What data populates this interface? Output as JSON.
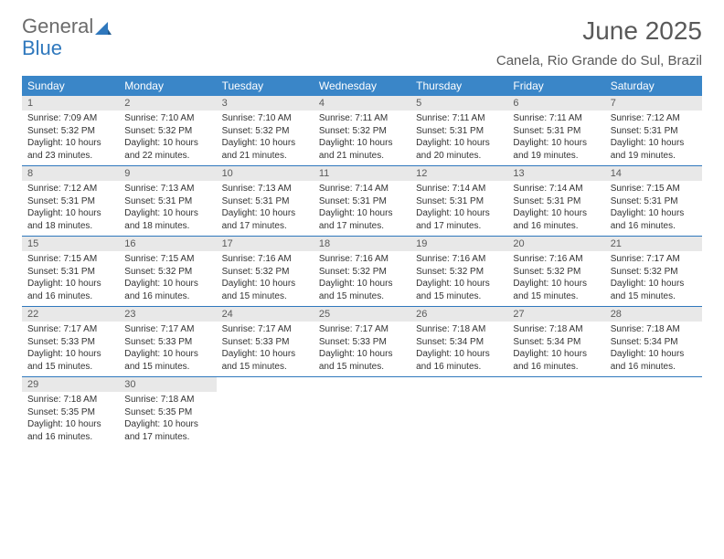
{
  "logo": {
    "text1": "General",
    "text2": "Blue"
  },
  "title": "June 2025",
  "location": "Canela, Rio Grande do Sul, Brazil",
  "colors": {
    "header_bg": "#3a86c8",
    "header_fg": "#ffffff",
    "daynum_bg": "#e8e8e8",
    "row_border": "#2f78bd",
    "title_color": "#595959",
    "text_color": "#333333",
    "logo_gray": "#6b6b6b",
    "logo_blue": "#2f78bd"
  },
  "typography": {
    "title_fontsize": 28,
    "location_fontsize": 15,
    "weekday_fontsize": 12,
    "daynum_fontsize": 11,
    "body_fontsize": 10
  },
  "weekdays": [
    "Sunday",
    "Monday",
    "Tuesday",
    "Wednesday",
    "Thursday",
    "Friday",
    "Saturday"
  ],
  "weeks": [
    [
      {
        "n": "1",
        "sunrise": "Sunrise: 7:09 AM",
        "sunset": "Sunset: 5:32 PM",
        "daylight": "Daylight: 10 hours and 23 minutes."
      },
      {
        "n": "2",
        "sunrise": "Sunrise: 7:10 AM",
        "sunset": "Sunset: 5:32 PM",
        "daylight": "Daylight: 10 hours and 22 minutes."
      },
      {
        "n": "3",
        "sunrise": "Sunrise: 7:10 AM",
        "sunset": "Sunset: 5:32 PM",
        "daylight": "Daylight: 10 hours and 21 minutes."
      },
      {
        "n": "4",
        "sunrise": "Sunrise: 7:11 AM",
        "sunset": "Sunset: 5:32 PM",
        "daylight": "Daylight: 10 hours and 21 minutes."
      },
      {
        "n": "5",
        "sunrise": "Sunrise: 7:11 AM",
        "sunset": "Sunset: 5:31 PM",
        "daylight": "Daylight: 10 hours and 20 minutes."
      },
      {
        "n": "6",
        "sunrise": "Sunrise: 7:11 AM",
        "sunset": "Sunset: 5:31 PM",
        "daylight": "Daylight: 10 hours and 19 minutes."
      },
      {
        "n": "7",
        "sunrise": "Sunrise: 7:12 AM",
        "sunset": "Sunset: 5:31 PM",
        "daylight": "Daylight: 10 hours and 19 minutes."
      }
    ],
    [
      {
        "n": "8",
        "sunrise": "Sunrise: 7:12 AM",
        "sunset": "Sunset: 5:31 PM",
        "daylight": "Daylight: 10 hours and 18 minutes."
      },
      {
        "n": "9",
        "sunrise": "Sunrise: 7:13 AM",
        "sunset": "Sunset: 5:31 PM",
        "daylight": "Daylight: 10 hours and 18 minutes."
      },
      {
        "n": "10",
        "sunrise": "Sunrise: 7:13 AM",
        "sunset": "Sunset: 5:31 PM",
        "daylight": "Daylight: 10 hours and 17 minutes."
      },
      {
        "n": "11",
        "sunrise": "Sunrise: 7:14 AM",
        "sunset": "Sunset: 5:31 PM",
        "daylight": "Daylight: 10 hours and 17 minutes."
      },
      {
        "n": "12",
        "sunrise": "Sunrise: 7:14 AM",
        "sunset": "Sunset: 5:31 PM",
        "daylight": "Daylight: 10 hours and 17 minutes."
      },
      {
        "n": "13",
        "sunrise": "Sunrise: 7:14 AM",
        "sunset": "Sunset: 5:31 PM",
        "daylight": "Daylight: 10 hours and 16 minutes."
      },
      {
        "n": "14",
        "sunrise": "Sunrise: 7:15 AM",
        "sunset": "Sunset: 5:31 PM",
        "daylight": "Daylight: 10 hours and 16 minutes."
      }
    ],
    [
      {
        "n": "15",
        "sunrise": "Sunrise: 7:15 AM",
        "sunset": "Sunset: 5:31 PM",
        "daylight": "Daylight: 10 hours and 16 minutes."
      },
      {
        "n": "16",
        "sunrise": "Sunrise: 7:15 AM",
        "sunset": "Sunset: 5:32 PM",
        "daylight": "Daylight: 10 hours and 16 minutes."
      },
      {
        "n": "17",
        "sunrise": "Sunrise: 7:16 AM",
        "sunset": "Sunset: 5:32 PM",
        "daylight": "Daylight: 10 hours and 15 minutes."
      },
      {
        "n": "18",
        "sunrise": "Sunrise: 7:16 AM",
        "sunset": "Sunset: 5:32 PM",
        "daylight": "Daylight: 10 hours and 15 minutes."
      },
      {
        "n": "19",
        "sunrise": "Sunrise: 7:16 AM",
        "sunset": "Sunset: 5:32 PM",
        "daylight": "Daylight: 10 hours and 15 minutes."
      },
      {
        "n": "20",
        "sunrise": "Sunrise: 7:16 AM",
        "sunset": "Sunset: 5:32 PM",
        "daylight": "Daylight: 10 hours and 15 minutes."
      },
      {
        "n": "21",
        "sunrise": "Sunrise: 7:17 AM",
        "sunset": "Sunset: 5:32 PM",
        "daylight": "Daylight: 10 hours and 15 minutes."
      }
    ],
    [
      {
        "n": "22",
        "sunrise": "Sunrise: 7:17 AM",
        "sunset": "Sunset: 5:33 PM",
        "daylight": "Daylight: 10 hours and 15 minutes."
      },
      {
        "n": "23",
        "sunrise": "Sunrise: 7:17 AM",
        "sunset": "Sunset: 5:33 PM",
        "daylight": "Daylight: 10 hours and 15 minutes."
      },
      {
        "n": "24",
        "sunrise": "Sunrise: 7:17 AM",
        "sunset": "Sunset: 5:33 PM",
        "daylight": "Daylight: 10 hours and 15 minutes."
      },
      {
        "n": "25",
        "sunrise": "Sunrise: 7:17 AM",
        "sunset": "Sunset: 5:33 PM",
        "daylight": "Daylight: 10 hours and 15 minutes."
      },
      {
        "n": "26",
        "sunrise": "Sunrise: 7:18 AM",
        "sunset": "Sunset: 5:34 PM",
        "daylight": "Daylight: 10 hours and 16 minutes."
      },
      {
        "n": "27",
        "sunrise": "Sunrise: 7:18 AM",
        "sunset": "Sunset: 5:34 PM",
        "daylight": "Daylight: 10 hours and 16 minutes."
      },
      {
        "n": "28",
        "sunrise": "Sunrise: 7:18 AM",
        "sunset": "Sunset: 5:34 PM",
        "daylight": "Daylight: 10 hours and 16 minutes."
      }
    ],
    [
      {
        "n": "29",
        "sunrise": "Sunrise: 7:18 AM",
        "sunset": "Sunset: 5:35 PM",
        "daylight": "Daylight: 10 hours and 16 minutes."
      },
      {
        "n": "30",
        "sunrise": "Sunrise: 7:18 AM",
        "sunset": "Sunset: 5:35 PM",
        "daylight": "Daylight: 10 hours and 17 minutes."
      },
      {
        "empty": true
      },
      {
        "empty": true
      },
      {
        "empty": true
      },
      {
        "empty": true
      },
      {
        "empty": true
      }
    ]
  ]
}
